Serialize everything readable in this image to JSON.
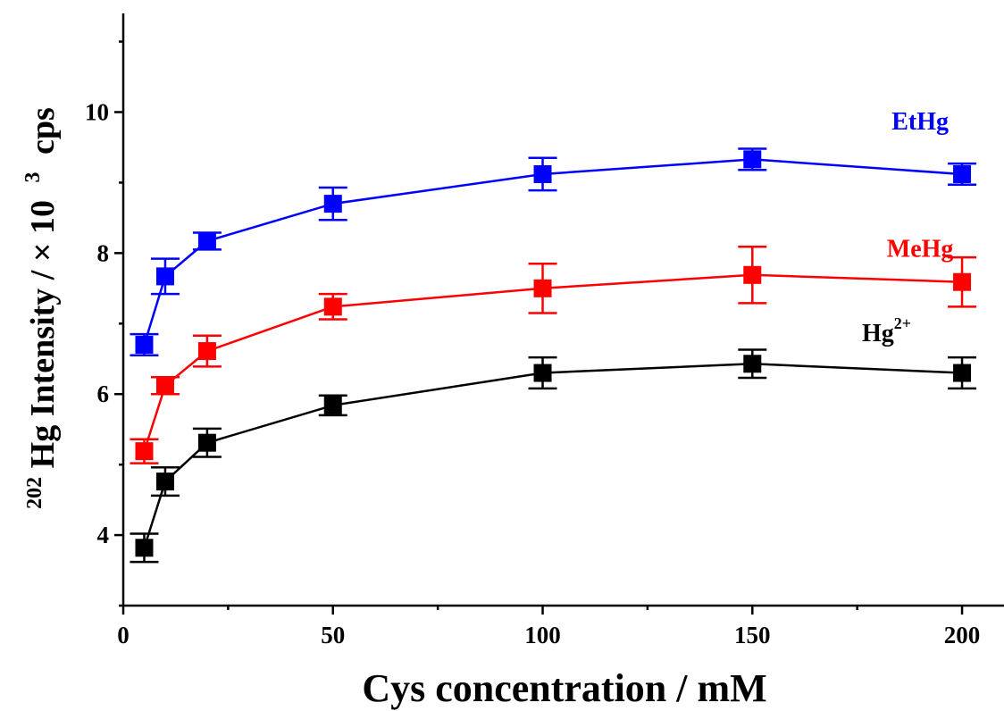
{
  "chart_data": {
    "type": "line",
    "title": "",
    "xlabel": "Cys concentration / mM",
    "ylabel": {
      "superscript": "202",
      "main": "Hg Intensity / × 10",
      "power": "3",
      "unit": "cps"
    },
    "xlim": [
      0,
      210
    ],
    "ylim": [
      3.0,
      11.4
    ],
    "xticks": [
      0,
      50,
      100,
      150,
      200
    ],
    "xtick_labels": [
      "0",
      "50",
      "100",
      "150",
      "200"
    ],
    "yticks": [
      4,
      6,
      8,
      10
    ],
    "ytick_labels": [
      "4",
      "6",
      "8",
      "10"
    ],
    "grid": false,
    "series": [
      {
        "name": "EtHg",
        "label_base": "EtHg",
        "label_sup": "",
        "color": "#0000ff",
        "x": [
          5,
          10,
          20,
          50,
          100,
          150,
          200
        ],
        "values": [
          6.7,
          7.67,
          8.17,
          8.7,
          9.12,
          9.33,
          9.12
        ],
        "errors": [
          0.15,
          0.25,
          0.12,
          0.23,
          0.23,
          0.15,
          0.15
        ]
      },
      {
        "name": "MeHg",
        "label_base": "MeHg",
        "label_sup": "",
        "color": "#ff0000",
        "x": [
          5,
          10,
          20,
          50,
          100,
          150,
          200
        ],
        "values": [
          5.19,
          6.12,
          6.61,
          7.24,
          7.5,
          7.69,
          7.59
        ],
        "errors": [
          0.17,
          0.12,
          0.22,
          0.18,
          0.35,
          0.4,
          0.35
        ]
      },
      {
        "name": "Hg2+",
        "label_base": "Hg",
        "label_sup": "2+",
        "color": "#000000",
        "x": [
          5,
          10,
          20,
          50,
          100,
          150,
          200
        ],
        "values": [
          3.82,
          4.76,
          5.31,
          5.84,
          6.3,
          6.43,
          6.3
        ],
        "errors": [
          0.2,
          0.2,
          0.2,
          0.14,
          0.22,
          0.2,
          0.22
        ]
      }
    ]
  }
}
